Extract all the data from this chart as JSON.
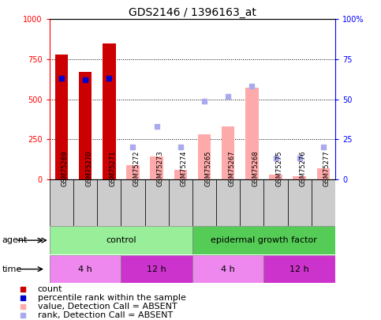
{
  "title": "GDS2146 / 1396163_at",
  "samples": [
    "GSM75269",
    "GSM75270",
    "GSM75271",
    "GSM75272",
    "GSM75273",
    "GSM75274",
    "GSM75265",
    "GSM75267",
    "GSM75268",
    "GSM75275",
    "GSM75276",
    "GSM75277"
  ],
  "bar_values_present": [
    780,
    670,
    850,
    null,
    null,
    null,
    null,
    null,
    null,
    null,
    null,
    null
  ],
  "bar_values_absent": [
    null,
    null,
    null,
    90,
    140,
    60,
    280,
    330,
    570,
    30,
    20,
    70
  ],
  "rank_present": [
    63,
    62,
    63,
    null,
    null,
    null,
    null,
    null,
    null,
    null,
    null,
    null
  ],
  "rank_absent": [
    null,
    null,
    null,
    20,
    33,
    20,
    49,
    52,
    58,
    13,
    13,
    20
  ],
  "agent_groups": [
    {
      "label": "control",
      "start": 0,
      "end": 6,
      "color": "#99ee99"
    },
    {
      "label": "epidermal growth factor",
      "start": 6,
      "end": 12,
      "color": "#55cc55"
    }
  ],
  "time_groups": [
    {
      "label": "4 h",
      "start": 0,
      "end": 3,
      "color": "#ee88ee"
    },
    {
      "label": "12 h",
      "start": 3,
      "end": 6,
      "color": "#cc33cc"
    },
    {
      "label": "4 h",
      "start": 6,
      "end": 9,
      "color": "#ee88ee"
    },
    {
      "label": "12 h",
      "start": 9,
      "end": 12,
      "color": "#cc33cc"
    }
  ],
  "ylim_left": [
    0,
    1000
  ],
  "ylim_right": [
    0,
    100
  ],
  "yticks_left": [
    0,
    250,
    500,
    750,
    1000
  ],
  "yticks_right": [
    0,
    25,
    50,
    75,
    100
  ],
  "bar_color_present": "#cc0000",
  "bar_color_absent": "#ffaaaa",
  "rank_color_present": "#0000cc",
  "rank_color_absent": "#aaaaee",
  "background_color": "#ffffff",
  "title_fontsize": 10,
  "tick_fontsize": 7,
  "label_fontsize": 8,
  "legend_fontsize": 8
}
